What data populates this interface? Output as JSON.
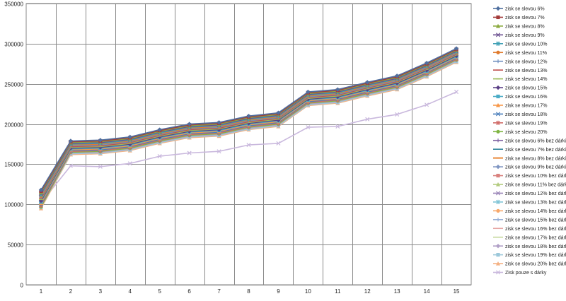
{
  "chart_data": {
    "type": "line",
    "title": "",
    "xlabel": "",
    "ylabel": "",
    "categories": [
      "1",
      "2",
      "3",
      "4",
      "5",
      "6",
      "7",
      "8",
      "9",
      "10",
      "11",
      "12",
      "13",
      "14",
      "15"
    ],
    "y_ticks": [
      "0",
      "50000",
      "100000",
      "150000",
      "200000",
      "250000",
      "300000",
      "350000"
    ],
    "ylim": [
      0,
      350000
    ],
    "grid": true,
    "legend_position": "right",
    "series": [
      {
        "name": "zisk se slevou 6%",
        "color": "#4F6F9F",
        "marker": "diamond",
        "values": [
          118000,
          179000,
          180000,
          184000,
          193000,
          200000,
          202000,
          210000,
          214000,
          240000,
          243000,
          252000,
          260000,
          276000,
          294000
        ]
      },
      {
        "name": "zisk se slevou 7%",
        "color": "#A33B3A",
        "marker": "square",
        "values": [
          116500,
          178000,
          179000,
          183000,
          192000,
          199000,
          201000,
          209000,
          213000,
          239000,
          242000,
          251000,
          259000,
          275000,
          293000
        ]
      },
      {
        "name": "zisk se slevou 8%",
        "color": "#8BAA3F",
        "marker": "triangle",
        "values": [
          115000,
          177000,
          178000,
          182000,
          191000,
          198000,
          200000,
          208000,
          212000,
          238000,
          241000,
          250000,
          258000,
          274000,
          292000
        ]
      },
      {
        "name": "zisk se slevou 9%",
        "color": "#6A4E8F",
        "marker": "x",
        "values": [
          113500,
          176000,
          177000,
          181000,
          190000,
          197000,
          199000,
          207000,
          211000,
          237000,
          240000,
          249000,
          257000,
          273000,
          291000
        ]
      },
      {
        "name": "zisk se slevou 10%",
        "color": "#3FA0B5",
        "marker": "star",
        "values": [
          112000,
          175000,
          176000,
          180000,
          189000,
          196000,
          198000,
          206000,
          210000,
          236000,
          239000,
          248000,
          256000,
          272000,
          290000
        ]
      },
      {
        "name": "zisk se slevou 11%",
        "color": "#E07B2E",
        "marker": "circle",
        "values": [
          110500,
          174000,
          175000,
          179000,
          188000,
          195000,
          197000,
          205000,
          209000,
          235000,
          238000,
          247000,
          255000,
          271000,
          289000
        ]
      },
      {
        "name": "zisk se slevou 12%",
        "color": "#6F8FBF",
        "marker": "plus",
        "values": [
          109000,
          173000,
          174000,
          178000,
          187000,
          194000,
          196000,
          204000,
          208000,
          234000,
          237000,
          246000,
          254000,
          270000,
          288000
        ]
      },
      {
        "name": "zisk se slevou 13%",
        "color": "#C0504D",
        "marker": "line",
        "values": [
          107500,
          172000,
          173000,
          177000,
          186000,
          193000,
          195000,
          203000,
          207000,
          233000,
          236000,
          245000,
          253000,
          269000,
          287000
        ]
      },
      {
        "name": "zisk se slevou 14%",
        "color": "#9BBB59",
        "marker": "line",
        "values": [
          106000,
          171000,
          172000,
          176000,
          185000,
          192000,
          194000,
          202000,
          206000,
          232000,
          235000,
          244000,
          252000,
          268000,
          286000
        ]
      },
      {
        "name": "zisk se slevou 15%",
        "color": "#5A3F85",
        "marker": "diamond",
        "values": [
          104500,
          170000,
          171000,
          175000,
          184000,
          191000,
          193000,
          201000,
          205000,
          231000,
          234000,
          243000,
          251000,
          267000,
          285000
        ]
      },
      {
        "name": "zisk se slevou 16%",
        "color": "#4BACC6",
        "marker": "square",
        "values": [
          103000,
          169000,
          170000,
          174000,
          183000,
          190000,
          192000,
          200000,
          204000,
          230000,
          233000,
          242000,
          250000,
          266000,
          284000
        ]
      },
      {
        "name": "zisk se slevou 17%",
        "color": "#F79646",
        "marker": "triangle",
        "values": [
          101500,
          168000,
          169000,
          173000,
          182000,
          189000,
          191000,
          199000,
          203000,
          229000,
          232000,
          241000,
          249000,
          265000,
          283000
        ]
      },
      {
        "name": "zisk se slevou 18%",
        "color": "#4A7EBB",
        "marker": "x",
        "values": [
          100000,
          167000,
          168000,
          172000,
          181000,
          188000,
          190000,
          198000,
          202000,
          228000,
          231000,
          240000,
          248000,
          264000,
          282000
        ]
      },
      {
        "name": "zisk se slevou 19%",
        "color": "#D06A67",
        "marker": "star",
        "values": [
          98500,
          166000,
          167000,
          171000,
          180000,
          187000,
          189000,
          197000,
          201000,
          227000,
          230000,
          239000,
          247000,
          263000,
          281000
        ]
      },
      {
        "name": "zisk se slevou 20%",
        "color": "#7FB543",
        "marker": "circle",
        "values": [
          97000,
          165000,
          166000,
          170000,
          179000,
          186000,
          188000,
          196000,
          200000,
          226000,
          229000,
          238000,
          246000,
          262000,
          280000
        ]
      },
      {
        "name": "zisk se slevou 6% bez dárků",
        "color": "#8064A2",
        "marker": "plus",
        "values": [
          116000,
          176000,
          177000,
          181000,
          190000,
          197000,
          199000,
          207000,
          211000,
          237000,
          240000,
          249000,
          257000,
          273000,
          291000
        ]
      },
      {
        "name": "zisk se slevou 7% bez dárků",
        "color": "#31859C",
        "marker": "line",
        "values": [
          114500,
          175000,
          176000,
          180000,
          189000,
          196000,
          198000,
          206000,
          210000,
          236000,
          239000,
          248000,
          256000,
          272000,
          290000
        ]
      },
      {
        "name": "zisk se slevou 8% bez dárků",
        "color": "#E46C0A",
        "marker": "line",
        "values": [
          113000,
          174000,
          175000,
          179000,
          188000,
          195000,
          197000,
          205000,
          209000,
          235000,
          238000,
          247000,
          255000,
          271000,
          289000
        ]
      },
      {
        "name": "zisk se slevou 9% bez dárků",
        "color": "#7F95C2",
        "marker": "diamond",
        "values": [
          111500,
          173000,
          174000,
          178000,
          187000,
          194000,
          196000,
          204000,
          208000,
          234000,
          237000,
          246000,
          254000,
          270000,
          288000
        ]
      },
      {
        "name": "zisk se slevou 10% bez dárků",
        "color": "#D9827F",
        "marker": "square",
        "values": [
          110000,
          172000,
          173000,
          177000,
          186000,
          193000,
          195000,
          203000,
          207000,
          233000,
          236000,
          245000,
          253000,
          269000,
          287000
        ]
      },
      {
        "name": "zisk se slevou 11% bez dárků",
        "color": "#B3CB7F",
        "marker": "triangle",
        "values": [
          108500,
          171000,
          172000,
          176000,
          185000,
          192000,
          194000,
          202000,
          206000,
          232000,
          235000,
          244000,
          252000,
          268000,
          286000
        ]
      },
      {
        "name": "zisk se slevou 12% bez dárků",
        "color": "#9A85B8",
        "marker": "x",
        "values": [
          107000,
          170000,
          171000,
          175000,
          184000,
          191000,
          193000,
          201000,
          205000,
          231000,
          234000,
          243000,
          251000,
          267000,
          285000
        ]
      },
      {
        "name": "zisk se slevou 13% bez dárků",
        "color": "#7FC4D6",
        "marker": "star",
        "values": [
          105500,
          169000,
          170000,
          174000,
          183000,
          190000,
          192000,
          200000,
          204000,
          230000,
          233000,
          242000,
          250000,
          266000,
          284000
        ]
      },
      {
        "name": "zisk se slevou 14% bez dárků",
        "color": "#F8A86A",
        "marker": "circle",
        "values": [
          104000,
          168000,
          169000,
          173000,
          182000,
          189000,
          191000,
          199000,
          203000,
          229000,
          232000,
          241000,
          249000,
          265000,
          283000
        ]
      },
      {
        "name": "zisk se slevou 15% bez dárků",
        "color": "#95AED6",
        "marker": "plus",
        "values": [
          102500,
          167000,
          168000,
          172000,
          181000,
          188000,
          190000,
          198000,
          202000,
          228000,
          231000,
          240000,
          248000,
          264000,
          282000
        ]
      },
      {
        "name": "zisk se slevou 16% bez dárků",
        "color": "#E6A5A3",
        "marker": "line",
        "values": [
          101000,
          166000,
          167000,
          171000,
          180000,
          187000,
          189000,
          197000,
          201000,
          227000,
          230000,
          239000,
          247000,
          263000,
          281000
        ]
      },
      {
        "name": "zisk se slevou 17% bez dárků",
        "color": "#C4D79B",
        "marker": "line",
        "values": [
          99500,
          165000,
          166000,
          170000,
          179000,
          186000,
          188000,
          196000,
          200000,
          226000,
          229000,
          238000,
          246000,
          262000,
          280000
        ]
      },
      {
        "name": "zisk se slevou 18% bez dárků",
        "color": "#B1A0C7",
        "marker": "diamond",
        "values": [
          98000,
          164000,
          165000,
          169000,
          178000,
          185000,
          187000,
          195000,
          199000,
          225000,
          228000,
          237000,
          245000,
          261000,
          279000
        ]
      },
      {
        "name": "zisk se slevou 19% bez dárků",
        "color": "#9CC8DA",
        "marker": "square",
        "values": [
          96500,
          163000,
          164000,
          168000,
          177000,
          184000,
          186000,
          194000,
          198000,
          224000,
          227000,
          236000,
          244000,
          260000,
          278000
        ]
      },
      {
        "name": "zisk se slevou 20% bez dárků",
        "color": "#F4B183",
        "marker": "triangle",
        "values": [
          95000,
          162000,
          163000,
          167000,
          176000,
          183000,
          185000,
          193000,
          197000,
          223000,
          226000,
          235000,
          243000,
          259000,
          277000
        ]
      },
      {
        "name": "Zisk pouze s dárky",
        "color": "#C9B8DD",
        "marker": "x",
        "values": [
          102000,
          148000,
          147000,
          151000,
          160000,
          164000,
          166000,
          174000,
          176000,
          196000,
          197000,
          206000,
          212000,
          224000,
          240000
        ]
      }
    ]
  }
}
